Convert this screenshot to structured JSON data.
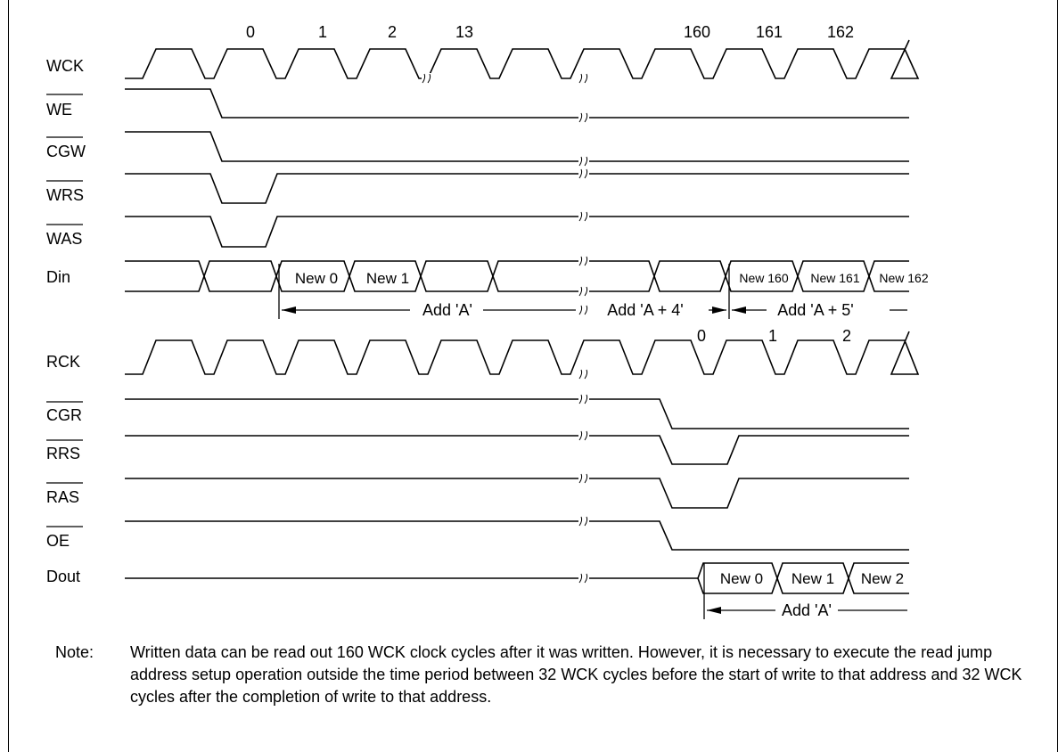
{
  "write_signals": [
    {
      "id": "wck",
      "label": "WCK",
      "overbar": false
    },
    {
      "id": "we",
      "label": "WE",
      "overbar": true
    },
    {
      "id": "cgw",
      "label": "CGW",
      "overbar": true
    },
    {
      "id": "wrs",
      "label": "WRS",
      "overbar": true
    },
    {
      "id": "was",
      "label": "WAS",
      "overbar": true
    },
    {
      "id": "din",
      "label": "Din",
      "overbar": false
    }
  ],
  "read_signals": [
    {
      "id": "rck",
      "label": "RCK",
      "overbar": false
    },
    {
      "id": "cgr",
      "label": "CGR",
      "overbar": true
    },
    {
      "id": "rrs",
      "label": "RRS",
      "overbar": true
    },
    {
      "id": "ras",
      "label": "RAS",
      "overbar": true
    },
    {
      "id": "oe",
      "label": "OE",
      "overbar": true
    },
    {
      "id": "dout",
      "label": "Dout",
      "overbar": false
    }
  ],
  "wck_cycle_numbers": [
    "0",
    "1",
    "2",
    "13",
    "160",
    "161",
    "162"
  ],
  "rck_cycle_numbers": [
    "0",
    "1",
    "2"
  ],
  "din_bus_values": [
    "New 0",
    "New 1",
    "New 160",
    "New 161",
    "New 162"
  ],
  "dout_bus_values": [
    "New 0",
    "New 1",
    "New 2"
  ],
  "address_spans": [
    "Add 'A'",
    "Add 'A + 4'",
    "Add 'A + 5'"
  ],
  "dout_address_span": "Add 'A'",
  "note": {
    "label": "Note:",
    "text": "Written data can be read out 160 WCK clock cycles after it was written.  However, it is necessary to execute the read jump address setup operation outside the time period between 32 WCK cycles before the start of write to that address and 32 WCK cycles after the completion of write to that address."
  }
}
